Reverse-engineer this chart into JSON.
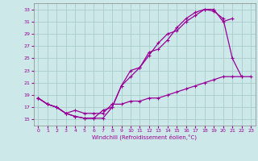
{
  "xlabel": "Windchill (Refroidissement éolien,°C)",
  "background_color": "#cce8e8",
  "grid_color": "#aacccc",
  "line_color": "#990099",
  "xlim": [
    -0.5,
    23.5
  ],
  "ylim": [
    14,
    34
  ],
  "xticks": [
    0,
    1,
    2,
    3,
    4,
    5,
    6,
    7,
    8,
    9,
    10,
    11,
    12,
    13,
    14,
    15,
    16,
    17,
    18,
    19,
    20,
    21,
    22,
    23
  ],
  "yticks": [
    15,
    17,
    19,
    21,
    23,
    25,
    27,
    29,
    31,
    33
  ],
  "line1_x": [
    0,
    1,
    2,
    3,
    4,
    5,
    6,
    7,
    8,
    9,
    10,
    11,
    12,
    13,
    14,
    15,
    16,
    17,
    18,
    19,
    20,
    21,
    22
  ],
  "line1_y": [
    18.5,
    17.5,
    17.0,
    16.0,
    15.5,
    15.2,
    15.2,
    15.2,
    17.0,
    20.5,
    23.0,
    23.5,
    26.0,
    26.5,
    28.0,
    30.0,
    31.5,
    32.5,
    33.0,
    32.7,
    31.5,
    25.0,
    22.0
  ],
  "line2_x": [
    0,
    1,
    2,
    3,
    4,
    5,
    6,
    7,
    8,
    9,
    10,
    11,
    12,
    13,
    14,
    15,
    16,
    17,
    18,
    19,
    20,
    21
  ],
  "line2_y": [
    18.5,
    17.5,
    17.0,
    16.0,
    15.5,
    15.2,
    15.2,
    16.5,
    17.0,
    20.5,
    22.0,
    23.5,
    25.5,
    27.5,
    29.0,
    29.5,
    31.0,
    32.0,
    33.0,
    33.0,
    31.0,
    31.5
  ],
  "line3_x": [
    0,
    1,
    2,
    3,
    4,
    5,
    6,
    7,
    8,
    9,
    10,
    11,
    12,
    13,
    14,
    15,
    16,
    17,
    18,
    19,
    20,
    21,
    22,
    23
  ],
  "line3_y": [
    18.5,
    17.5,
    17.0,
    16.0,
    16.5,
    16.0,
    16.0,
    16.0,
    17.5,
    17.5,
    18.0,
    18.0,
    18.5,
    18.5,
    19.0,
    19.5,
    20.0,
    20.5,
    21.0,
    21.5,
    22.0,
    22.0,
    22.0,
    22.0
  ]
}
